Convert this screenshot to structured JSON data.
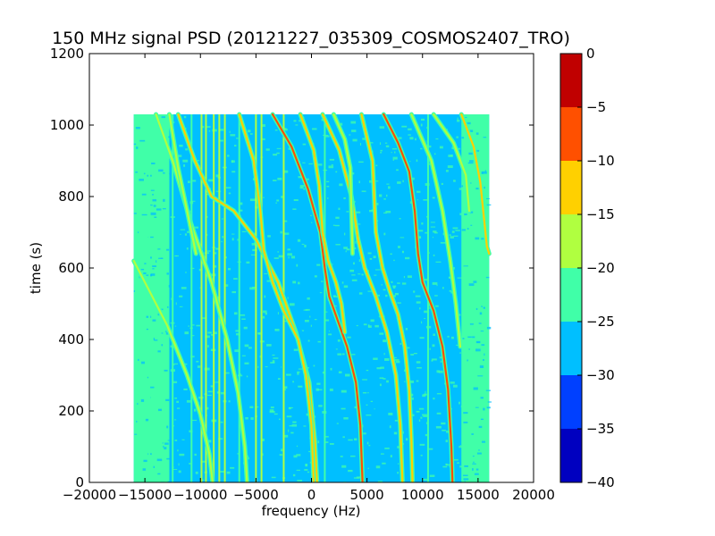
{
  "chart_data": {
    "type": "heatmap",
    "title": "150 MHz signal PSD (20121227_035309_COSMOS2407_TRO)",
    "xlabel": "frequency (Hz)",
    "ylabel": "time (s)",
    "xlim": [
      -20000,
      20000
    ],
    "ylim": [
      0,
      1200
    ],
    "x_ticks": [
      -20000,
      -15000,
      -10000,
      -5000,
      0,
      5000,
      10000,
      15000,
      20000
    ],
    "x_tick_labels": [
      "−20000",
      "−15000",
      "−10000",
      "−5000",
      "0",
      "5000",
      "10000",
      "15000",
      "20000"
    ],
    "y_ticks": [
      0,
      200,
      400,
      600,
      800,
      1000,
      1200
    ],
    "y_tick_labels": [
      "0",
      "200",
      "400",
      "600",
      "800",
      "1000",
      "1200"
    ],
    "data_extent": {
      "freq_min": -16000,
      "freq_max": 16000,
      "time_min": 0,
      "time_max": 1030
    },
    "colorbar": {
      "ticks": [
        0,
        -5,
        -10,
        -15,
        -20,
        -25,
        -30,
        -35,
        -40
      ],
      "tick_labels": [
        "0",
        "−5",
        "−10",
        "−15",
        "−20",
        "−25",
        "−30",
        "−35",
        "−40"
      ],
      "levels": [
        {
          "range": [
            -40,
            -35
          ],
          "color": "#0000c0"
        },
        {
          "range": [
            -35,
            -30
          ],
          "color": "#0040ff"
        },
        {
          "range": [
            -30,
            -25
          ],
          "color": "#00bfff"
        },
        {
          "range": [
            -25,
            -20
          ],
          "color": "#40ffa8"
        },
        {
          "range": [
            -20,
            -15
          ],
          "color": "#b0ff40"
        },
        {
          "range": [
            -15,
            -10
          ],
          "color": "#ffd000"
        },
        {
          "range": [
            -10,
            -5
          ],
          "color": "#ff5000"
        },
        {
          "range": [
            -5,
            0
          ],
          "color": "#c00000"
        }
      ]
    },
    "background_level_db": -27.5,
    "edge_level_db": -22.5,
    "vertical_lines": [
      {
        "freq": -14600,
        "level_db": -22.5
      },
      {
        "freq": -12500,
        "level_db": -22.5
      },
      {
        "freq": -10800,
        "level_db": -22.5
      },
      {
        "freq": -9900,
        "level_db": -17.5
      },
      {
        "freq": -9500,
        "level_db": -17.5
      },
      {
        "freq": -8800,
        "level_db": -17.5
      },
      {
        "freq": -8300,
        "level_db": -17.5
      },
      {
        "freq": -7800,
        "level_db": -17.5
      },
      {
        "freq": -6500,
        "level_db": -22.5
      },
      {
        "freq": -5000,
        "level_db": -17.5
      },
      {
        "freq": -4500,
        "level_db": -17.5
      },
      {
        "freq": -2500,
        "level_db": -17.5
      },
      {
        "freq": 1200,
        "level_db": -22.5
      },
      {
        "freq": 10500,
        "level_db": -22.5
      }
    ],
    "doppler_tracks": [
      {
        "name": "",
        "level_db": -17.5,
        "points": [
          [
            -16000,
            620
          ],
          [
            -15000,
            560
          ],
          [
            -13000,
            440
          ],
          [
            -11200,
            300
          ],
          [
            -10000,
            190
          ],
          [
            -9200,
            80
          ],
          [
            -8900,
            0
          ]
        ]
      },
      {
        "name": "",
        "level_db": -17.5,
        "points": [
          [
            -14000,
            1030
          ],
          [
            -12500,
            900
          ],
          [
            -10800,
            720
          ],
          [
            -9000,
            560
          ],
          [
            -7600,
            400
          ],
          [
            -6600,
            250
          ],
          [
            -6000,
            100
          ],
          [
            -5800,
            0
          ]
        ]
      },
      {
        "name": "",
        "level_db": -12.5,
        "points": [
          [
            -12000,
            1030
          ],
          [
            -10500,
            900
          ],
          [
            -9000,
            800
          ],
          [
            -7000,
            760
          ],
          [
            -5000,
            680
          ],
          [
            -3000,
            560
          ],
          [
            -1400,
            420
          ],
          [
            -200,
            280
          ],
          [
            300,
            120
          ],
          [
            500,
            0
          ]
        ]
      },
      {
        "name": "",
        "level_db": -12.5,
        "points": [
          [
            -6500,
            1030
          ],
          [
            -5200,
            900
          ],
          [
            -4600,
            760
          ],
          [
            -4300,
            650
          ],
          [
            -3500,
            560
          ],
          [
            -2500,
            480
          ],
          [
            -1200,
            400
          ],
          [
            -500,
            300
          ],
          [
            0,
            160
          ],
          [
            200,
            0
          ]
        ]
      },
      {
        "name": "",
        "level_db": -7.5,
        "points": [
          [
            -3500,
            1030
          ],
          [
            -1800,
            940
          ],
          [
            -300,
            820
          ],
          [
            800,
            700
          ],
          [
            1200,
            600
          ],
          [
            1600,
            520
          ],
          [
            2400,
            450
          ],
          [
            3200,
            380
          ],
          [
            4000,
            280
          ],
          [
            4400,
            160
          ],
          [
            4600,
            0
          ]
        ]
      },
      {
        "name": "",
        "level_db": -12.5,
        "points": [
          [
            -1000,
            1030
          ],
          [
            200,
            930
          ],
          [
            700,
            830
          ],
          [
            1000,
            700
          ],
          [
            1500,
            620
          ],
          [
            2200,
            560
          ],
          [
            2700,
            500
          ],
          [
            3000,
            420
          ]
        ]
      },
      {
        "name": "",
        "level_db": -12.5,
        "points": [
          [
            1000,
            1030
          ],
          [
            2500,
            930
          ],
          [
            3600,
            800
          ],
          [
            4200,
            680
          ],
          [
            4800,
            600
          ],
          [
            5800,
            520
          ],
          [
            6800,
            420
          ],
          [
            7600,
            300
          ],
          [
            8000,
            160
          ],
          [
            8200,
            0
          ]
        ]
      },
      {
        "name": "",
        "level_db": -12.5,
        "points": [
          [
            4500,
            1030
          ],
          [
            5500,
            900
          ],
          [
            5800,
            700
          ],
          [
            6400,
            600
          ],
          [
            7000,
            540
          ],
          [
            7800,
            470
          ],
          [
            8400,
            380
          ],
          [
            8800,
            260
          ],
          [
            9000,
            120
          ],
          [
            9100,
            0
          ]
        ]
      },
      {
        "name": "",
        "level_db": -7.5,
        "points": [
          [
            6500,
            1030
          ],
          [
            7800,
            950
          ],
          [
            8800,
            870
          ],
          [
            9300,
            760
          ],
          [
            9600,
            640
          ],
          [
            10000,
            560
          ],
          [
            11000,
            480
          ],
          [
            11800,
            380
          ],
          [
            12300,
            260
          ],
          [
            12600,
            100
          ],
          [
            12700,
            0
          ]
        ]
      },
      {
        "name": "",
        "level_db": -17.5,
        "points": [
          [
            9000,
            1030
          ],
          [
            10800,
            900
          ],
          [
            11800,
            760
          ],
          [
            12500,
            620
          ],
          [
            13000,
            500
          ],
          [
            13400,
            380
          ]
        ]
      },
      {
        "name": "",
        "level_db": -17.5,
        "points": [
          [
            2000,
            1030
          ],
          [
            3000,
            960
          ],
          [
            3500,
            880
          ],
          [
            3600,
            760
          ],
          [
            3700,
            640
          ]
        ]
      },
      {
        "name": "",
        "level_db": -17.5,
        "points": [
          [
            11000,
            1030
          ],
          [
            12800,
            950
          ],
          [
            13900,
            860
          ],
          [
            14200,
            760
          ]
        ]
      },
      {
        "name": "",
        "level_db": -12.5,
        "points": [
          [
            13500,
            1030
          ],
          [
            14600,
            940
          ],
          [
            15200,
            840
          ],
          [
            15500,
            750
          ],
          [
            15800,
            660
          ],
          [
            16000,
            640
          ]
        ]
      },
      {
        "name": "",
        "level_db": -17.5,
        "points": [
          [
            -12800,
            1030
          ],
          [
            -12000,
            880
          ],
          [
            -11200,
            760
          ],
          [
            -10400,
            640
          ]
        ]
      }
    ]
  }
}
